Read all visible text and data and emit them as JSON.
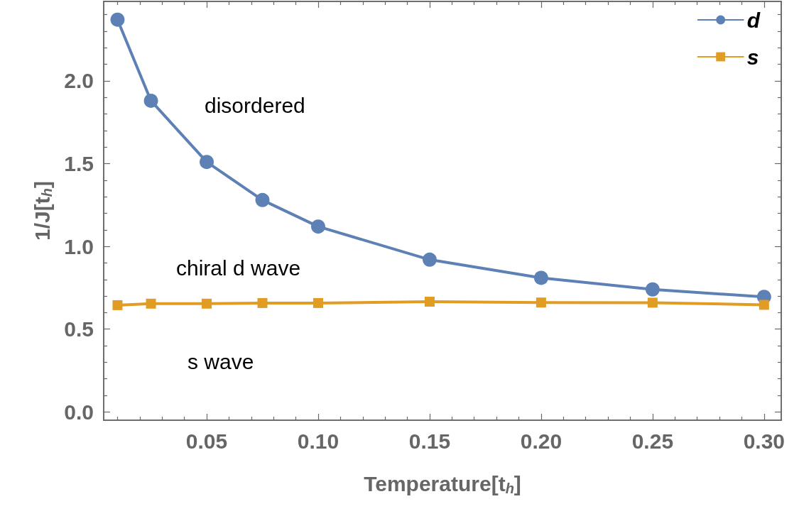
{
  "chart_data": {
    "type": "line",
    "xlabel": "Temperature[t$_{h}$]",
    "ylabel": "1/J[t$_{h}$]",
    "x": [
      0.01,
      0.025,
      0.05,
      0.075,
      0.1,
      0.15,
      0.2,
      0.25,
      0.3
    ],
    "series": [
      {
        "name": "d",
        "color": "#5e81b5",
        "marker": "circle",
        "values": [
          2.37,
          1.88,
          1.51,
          1.28,
          1.12,
          0.92,
          0.81,
          0.74,
          0.695
        ]
      },
      {
        "name": "s",
        "color": "#e19c24",
        "marker": "square",
        "values": [
          0.645,
          0.654,
          0.654,
          0.658,
          0.658,
          0.666,
          0.661,
          0.66,
          0.647
        ]
      }
    ],
    "xlim": [
      0.0038,
      0.3077
    ],
    "ylim": [
      -0.05,
      2.48
    ],
    "xticks": [
      {
        "value": 0.05,
        "label": "0.05"
      },
      {
        "value": 0.1,
        "label": "0.10"
      },
      {
        "value": 0.15,
        "label": "0.15"
      },
      {
        "value": 0.2,
        "label": "0.20"
      },
      {
        "value": 0.25,
        "label": "0.25"
      },
      {
        "value": 0.3,
        "label": "0.30"
      }
    ],
    "yticks": [
      {
        "value": 0,
        "label": "0.0"
      },
      {
        "value": 0.5,
        "label": "0.5"
      },
      {
        "value": 1,
        "label": "1.0"
      },
      {
        "value": 1.5,
        "label": "1.5"
      },
      {
        "value": 2,
        "label": "2.0"
      }
    ],
    "annotations": [
      "disordered",
      "chiral d wave",
      "s wave"
    ],
    "grid": false,
    "legend": "top right",
    "line_style": "solid"
  }
}
